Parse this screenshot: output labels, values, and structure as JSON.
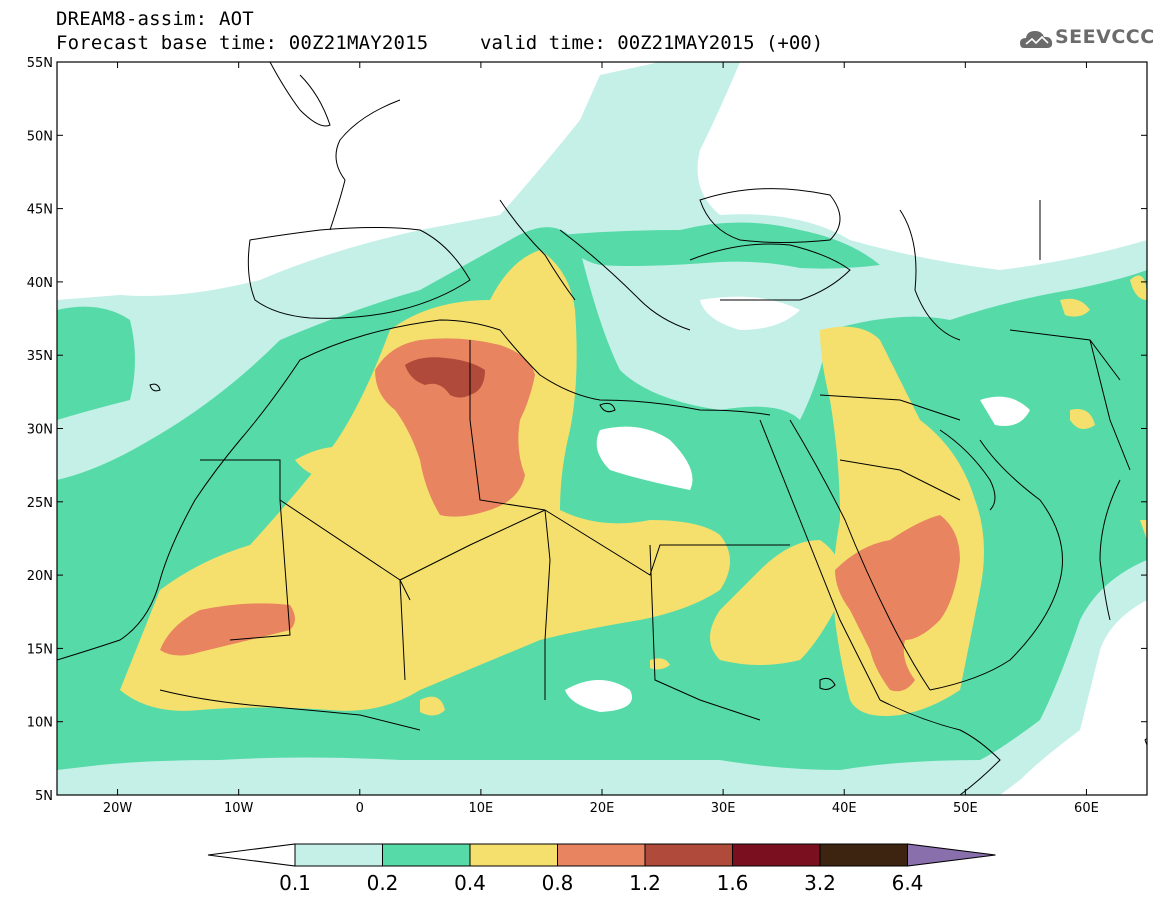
{
  "title": {
    "line1": "DREAM8-assim: AOT",
    "line2": "Forecast base time: 00Z21MAY2015",
    "valid": "valid time: 00Z21MAY2015 (+00)"
  },
  "logo": {
    "text": "SEEVCCC",
    "icon": "cloud-icon"
  },
  "map": {
    "region": "North Africa / Mediterranean / Middle East",
    "lon_range": [
      -25,
      65
    ],
    "lat_range": [
      5,
      55
    ],
    "lat_ticks": [
      "5N",
      "10N",
      "15N",
      "20N",
      "25N",
      "30N",
      "35N",
      "40N",
      "45N",
      "50N",
      "55N"
    ],
    "lon_ticks": [
      "20W",
      "10W",
      "0",
      "10E",
      "20E",
      "30E",
      "40E",
      "50E",
      "60E"
    ],
    "field": "Aerosol Optical Thickness"
  },
  "legend": {
    "levels": [
      "0.1",
      "0.2",
      "0.4",
      "0.8",
      "1.2",
      "1.6",
      "3.2",
      "6.4"
    ],
    "colors": [
      "#ffffff",
      "#c4f0e8",
      "#56dba8",
      "#f5e06e",
      "#e8845f",
      "#b04a3a",
      "#7a0f20",
      "#3d2410",
      "#8a6fad"
    ]
  }
}
